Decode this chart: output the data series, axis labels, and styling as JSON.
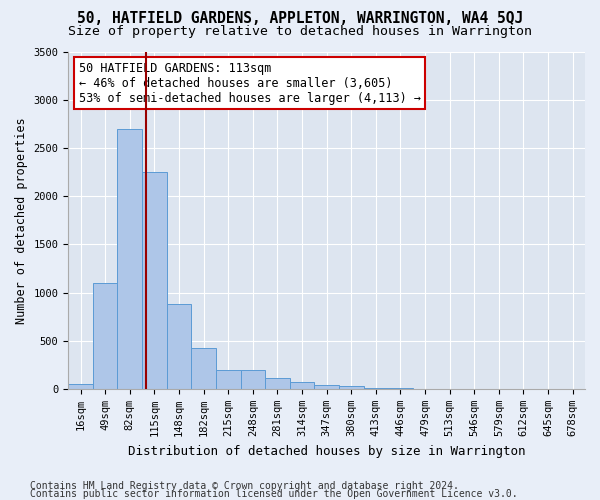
{
  "title1": "50, HATFIELD GARDENS, APPLETON, WARRINGTON, WA4 5QJ",
  "title2": "Size of property relative to detached houses in Warrington",
  "xlabel": "Distribution of detached houses by size in Warrington",
  "ylabel": "Number of detached properties",
  "categories": [
    "16sqm",
    "49sqm",
    "82sqm",
    "115sqm",
    "148sqm",
    "182sqm",
    "215sqm",
    "248sqm",
    "281sqm",
    "314sqm",
    "347sqm",
    "380sqm",
    "413sqm",
    "446sqm",
    "479sqm",
    "513sqm",
    "546sqm",
    "579sqm",
    "612sqm",
    "645sqm",
    "678sqm"
  ],
  "bar_values": [
    50,
    1100,
    2700,
    2250,
    880,
    420,
    195,
    195,
    110,
    75,
    40,
    30,
    10,
    5,
    2,
    1,
    0,
    0,
    0,
    0,
    0
  ],
  "bar_color": "#aec6e8",
  "bar_edge_color": "#5b9bd5",
  "vline_x": 2.65,
  "vline_color": "#990000",
  "annotation_line1": "50 HATFIELD GARDENS: 113sqm",
  "annotation_line2": "← 46% of detached houses are smaller (3,605)",
  "annotation_line3": "53% of semi-detached houses are larger (4,113) →",
  "annotation_box_color": "#cc0000",
  "ylim": [
    0,
    3500
  ],
  "yticks": [
    0,
    500,
    1000,
    1500,
    2000,
    2500,
    3000,
    3500
  ],
  "plot_bg_color": "#dde5f0",
  "fig_bg_color": "#e8eef8",
  "footer1": "Contains HM Land Registry data © Crown copyright and database right 2024.",
  "footer2": "Contains public sector information licensed under the Open Government Licence v3.0.",
  "title1_fontsize": 10.5,
  "title2_fontsize": 9.5,
  "xlabel_fontsize": 9,
  "ylabel_fontsize": 8.5,
  "tick_fontsize": 7.5,
  "annotation_fontsize": 8.5,
  "footer_fontsize": 7
}
